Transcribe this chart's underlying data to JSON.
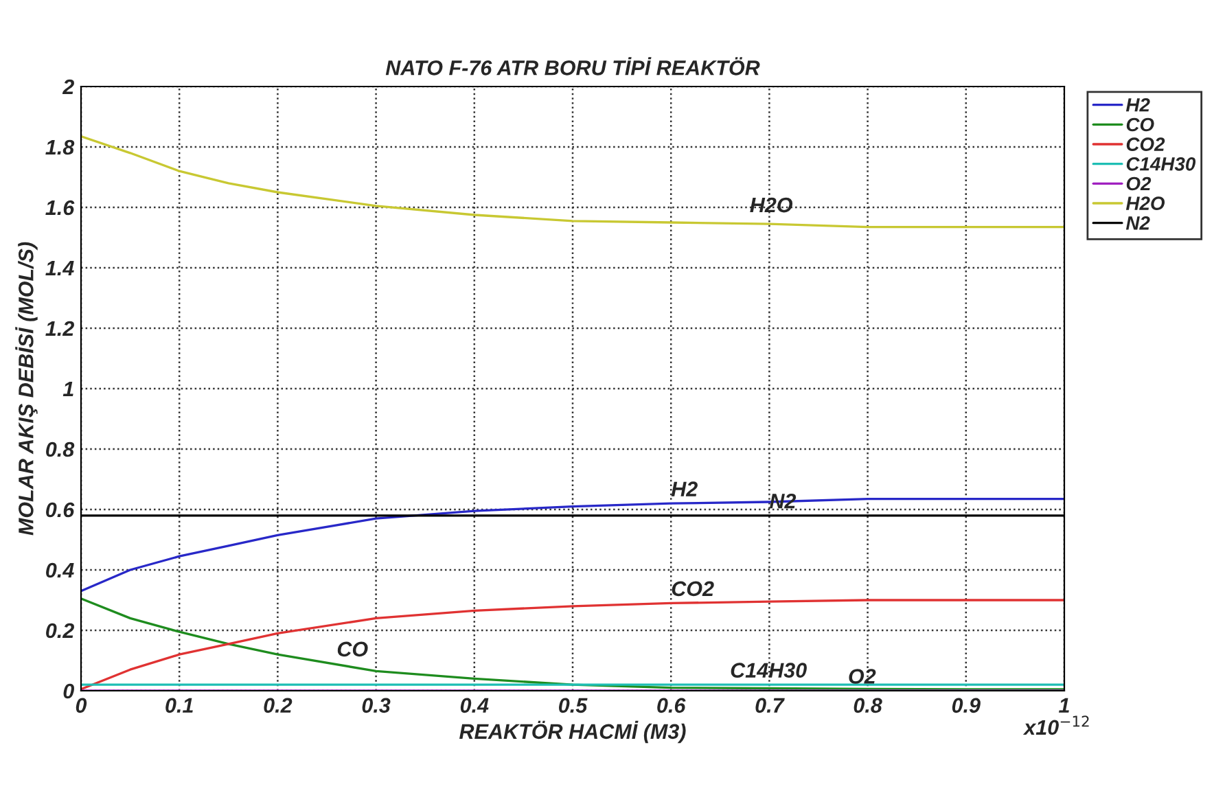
{
  "chart_data": {
    "type": "line",
    "title": "NATO F-76 ATR BORU TİPİ REAKTÖR",
    "xlabel": "REAKTÖR HACMİ (M3)",
    "ylabel": "MOLAR AKIŞ DEBİSİ (MOL/S)",
    "x": [
      0,
      0.05,
      0.1,
      0.15,
      0.2,
      0.3,
      0.4,
      0.5,
      0.6,
      0.7,
      0.8,
      0.9,
      1
    ],
    "series": [
      {
        "name": "H2",
        "color": "#2828c8",
        "values": [
          0.33,
          0.4,
          0.445,
          0.48,
          0.515,
          0.57,
          0.595,
          0.61,
          0.62,
          0.625,
          0.635,
          0.635,
          0.635
        ]
      },
      {
        "name": "CO",
        "color": "#1e8c1e",
        "values": [
          0.305,
          0.24,
          0.195,
          0.155,
          0.12,
          0.065,
          0.04,
          0.02,
          0.01,
          0.008,
          0.006,
          0.005,
          0.005
        ]
      },
      {
        "name": "CO2",
        "color": "#e03232",
        "values": [
          0.005,
          0.07,
          0.12,
          0.155,
          0.19,
          0.24,
          0.265,
          0.28,
          0.29,
          0.295,
          0.3,
          0.3,
          0.3
        ]
      },
      {
        "name": "C14H30",
        "color": "#1ebeb4",
        "values": [
          0.02,
          0.02,
          0.02,
          0.02,
          0.02,
          0.02,
          0.02,
          0.02,
          0.02,
          0.02,
          0.02,
          0.02,
          0.02
        ]
      },
      {
        "name": "O2",
        "color": "#a020c0",
        "values": [
          0,
          0,
          0,
          0,
          0,
          0,
          0,
          0,
          0,
          0,
          0,
          0,
          0
        ]
      },
      {
        "name": "H2O",
        "color": "#c8c832",
        "values": [
          1.835,
          1.78,
          1.72,
          1.68,
          1.65,
          1.605,
          1.575,
          1.555,
          1.55,
          1.545,
          1.535,
          1.535,
          1.535
        ]
      },
      {
        "name": "N2",
        "color": "#000000",
        "values": [
          0.58,
          0.58,
          0.58,
          0.58,
          0.58,
          0.58,
          0.58,
          0.58,
          0.58,
          0.58,
          0.58,
          0.58,
          0.58
        ]
      }
    ],
    "xlim": [
      0,
      1
    ],
    "xticks": [
      0,
      0.1,
      0.2,
      0.3,
      0.4,
      0.5,
      0.6,
      0.7,
      0.8,
      0.9,
      1
    ],
    "ylim": [
      0,
      2
    ],
    "yticks": [
      0,
      0.2,
      0.4,
      0.6,
      0.8,
      1,
      1.2,
      1.4,
      1.6,
      1.8,
      2
    ],
    "grid": true,
    "legend": "top right",
    "line_style": "solid",
    "marker": "none",
    "annotations": [
      {
        "text": "H2O",
        "x": 0.68,
        "y": 1.56
      },
      {
        "text": "H2",
        "x": 0.6,
        "y": 0.62
      },
      {
        "text": "N2",
        "x": 0.7,
        "y": 0.58
      },
      {
        "text": "CO2",
        "x": 0.6,
        "y": 0.29
      },
      {
        "text": "CO",
        "x": 0.26,
        "y": 0.09
      },
      {
        "text": "C14H30",
        "x": 0.66,
        "y": 0.02
      },
      {
        "text": "O2",
        "x": 0.78,
        "y": 0
      },
      "x10$^{−12}$"
    ]
  }
}
